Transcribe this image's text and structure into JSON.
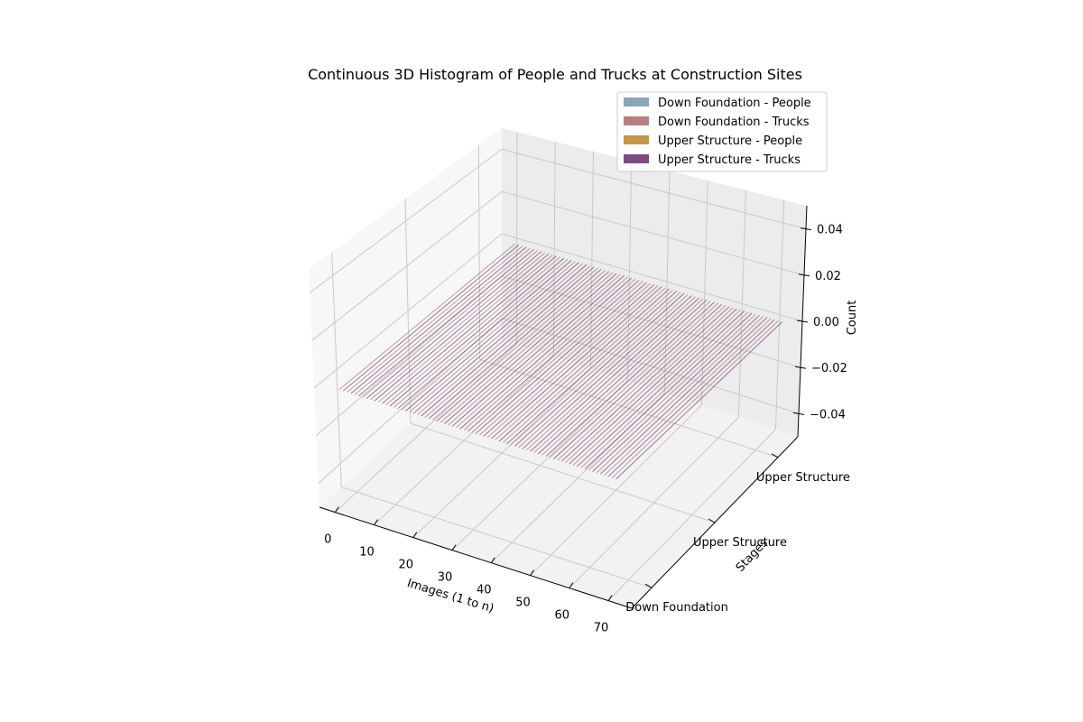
{
  "chart_data": {
    "type": "bar3d",
    "title": "Continuous 3D Histogram of People and Trucks at Construction Sites",
    "xlabel": "Images (1 to n)",
    "ylabel": "Stages",
    "zlabel": "Count",
    "x_ticks": [
      "0",
      "10",
      "20",
      "30",
      "40",
      "50",
      "60",
      "70"
    ],
    "y_ticks": [
      "Down Foundation",
      "Upper Structure",
      "Upper Structure"
    ],
    "z_ticks": [
      "−0.04",
      "−0.02",
      "0.00",
      "0.02",
      "0.04"
    ],
    "z_range": [
      -0.05,
      0.05
    ],
    "x_range": [
      1,
      72
    ],
    "grid": true,
    "legend_position": "top-right",
    "series": [
      {
        "name": "Down Foundation - People",
        "color": "#8aa7b8",
        "values": []
      },
      {
        "name": "Down Foundation - Trucks",
        "color": "#b57e80",
        "values": []
      },
      {
        "name": "Upper Structure - People",
        "color": "#c4974a",
        "values": []
      },
      {
        "name": "Upper Structure - Trucks",
        "color": "#7e4b82",
        "values": []
      }
    ],
    "note_values": "all counts are 0"
  }
}
